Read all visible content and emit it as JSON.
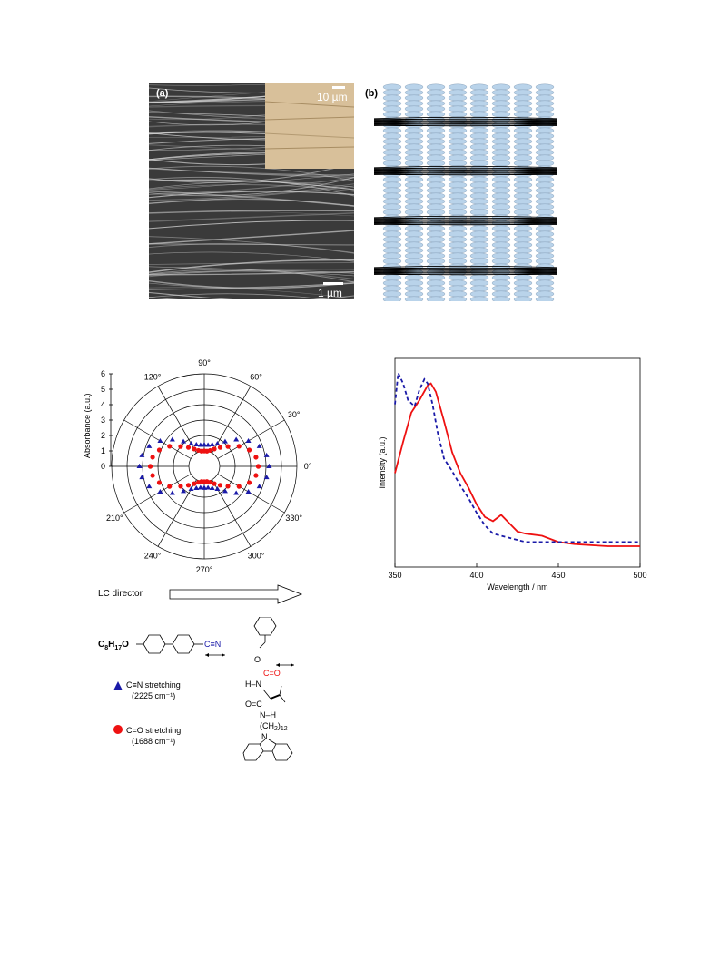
{
  "figure": {
    "panel_a": {
      "label": "(a)",
      "scale_main": "1 µm",
      "scale_inset": "10 µm"
    },
    "panel_b": {
      "label": "(b)"
    },
    "polar": {
      "ylabel": "Absorbance (a.u.)",
      "radial_ticks": [
        "0",
        "1",
        "2",
        "3",
        "4",
        "5",
        "6"
      ],
      "angle_labels": [
        "0°",
        "30°",
        "60°",
        "90°",
        "120°",
        "210°",
        "240°",
        "270°",
        "300°",
        "330°"
      ],
      "director_label": "LC director",
      "legend": [
        {
          "marker": "triangle",
          "color": "#1a1aa8",
          "label": "C≡N  stretching",
          "sub": "(2225 cm⁻¹)"
        },
        {
          "marker": "circle",
          "color": "#ee1111",
          "label": "C=O  stretching",
          "sub": "(1688 cm⁻¹)"
        }
      ]
    },
    "chemistry": {
      "left_formula": "C8H17O",
      "nitrile": "C≡N",
      "carbonyl": "C=O",
      "labels": [
        "O",
        "H–N",
        "O",
        "C",
        "N–H",
        "(CH2)12",
        "N"
      ]
    }
  },
  "chart_data": [
    {
      "type": "scatter",
      "title": "",
      "ylabel": "Absorbance (a.u.)",
      "ylim": [
        0,
        6
      ],
      "series": [
        {
          "name": "C≡N stretching (2225 cm⁻¹)",
          "color": "#1a1aa8",
          "description_values_angle_deg_to_r": [
            [
              0,
              4.2
            ],
            [
              10,
              4.1
            ],
            [
              20,
              3.8
            ],
            [
              30,
              3.3
            ],
            [
              40,
              2.7
            ],
            [
              50,
              2.1
            ],
            [
              60,
              1.7
            ],
            [
              70,
              1.5
            ],
            [
              80,
              1.4
            ],
            [
              90,
              1.4
            ]
          ]
        },
        {
          "name": "C=O stretching (1688 cm⁻¹)",
          "color": "#ee1111",
          "description_values_angle_deg_to_r": [
            [
              0,
              3.5
            ],
            [
              10,
              3.4
            ],
            [
              20,
              3.1
            ],
            [
              30,
              2.6
            ],
            [
              40,
              2.0
            ],
            [
              50,
              1.6
            ],
            [
              60,
              1.3
            ],
            [
              70,
              1.1
            ],
            [
              80,
              1.0
            ],
            [
              90,
              1.0
            ]
          ]
        }
      ]
    },
    {
      "type": "line",
      "title": "",
      "xlabel": "Wavelength / nm",
      "ylabel": "Intensity (a.u.)",
      "xlim": [
        350,
        500
      ],
      "xticks": [
        "350",
        "400",
        "450",
        "500"
      ],
      "series": [
        {
          "name": "",
          "style": "solid",
          "color": "#ee1111",
          "x": [
            350,
            355,
            360,
            365,
            370,
            372,
            375,
            380,
            385,
            390,
            395,
            400,
            405,
            410,
            415,
            420,
            425,
            430,
            440,
            450,
            460,
            480,
            500
          ],
          "y": [
            0.45,
            0.6,
            0.74,
            0.8,
            0.87,
            0.88,
            0.84,
            0.7,
            0.55,
            0.45,
            0.38,
            0.3,
            0.24,
            0.22,
            0.25,
            0.21,
            0.17,
            0.16,
            0.15,
            0.12,
            0.11,
            0.1,
            0.1
          ]
        },
        {
          "name": "",
          "style": "dashed",
          "color": "#1a1aa8",
          "x": [
            350,
            352,
            355,
            358,
            362,
            365,
            368,
            370,
            373,
            376,
            380,
            385,
            390,
            395,
            400,
            405,
            410,
            420,
            430,
            440,
            450,
            470,
            500
          ],
          "y": [
            0.78,
            0.93,
            0.88,
            0.8,
            0.77,
            0.85,
            0.9,
            0.88,
            0.78,
            0.65,
            0.52,
            0.46,
            0.39,
            0.33,
            0.26,
            0.2,
            0.16,
            0.14,
            0.12,
            0.12,
            0.12,
            0.12,
            0.12
          ]
        }
      ]
    }
  ]
}
